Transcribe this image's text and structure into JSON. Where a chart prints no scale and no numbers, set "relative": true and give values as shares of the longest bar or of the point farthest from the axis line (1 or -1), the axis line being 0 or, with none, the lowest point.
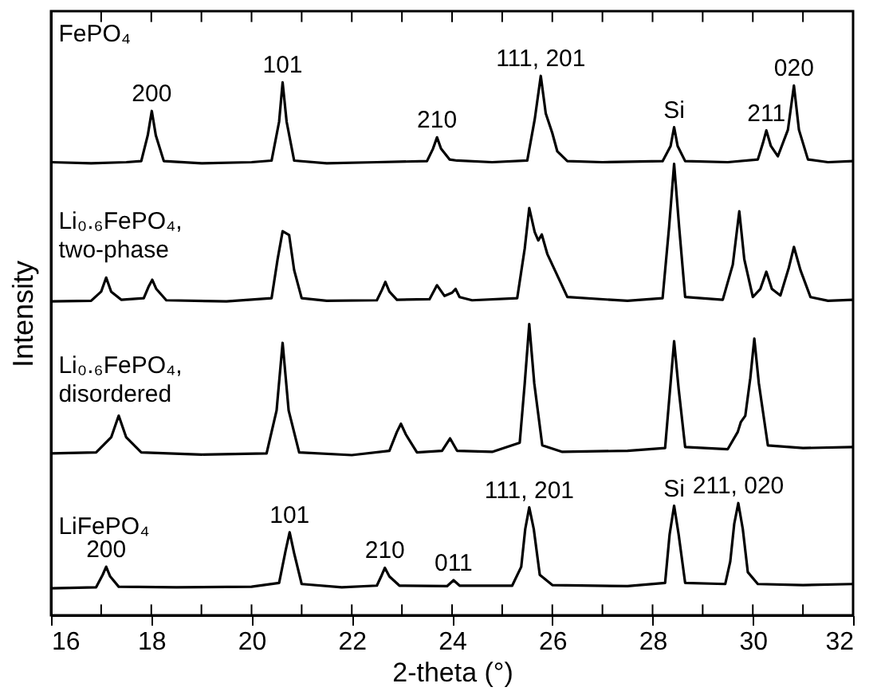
{
  "chart_data": {
    "type": "line",
    "relative": true,
    "xlabel": "2-theta (°)",
    "ylabel": "Intensity",
    "xlim": [
      16,
      32
    ],
    "xticks": [
      16,
      {
        "value": 17,
        "label": null
      },
      18,
      {
        "value": 19,
        "label": null
      },
      20,
      {
        "value": 21,
        "label": null
      },
      22,
      {
        "value": 23,
        "label": null
      },
      24,
      {
        "value": 25,
        "label": null
      },
      26,
      {
        "value": 27,
        "label": null
      },
      28,
      {
        "value": 29,
        "label": null
      },
      30,
      {
        "value": 31,
        "label": null
      },
      32
    ],
    "tick_labels": "x",
    "grid": false,
    "marker": "none",
    "line_style": "solid",
    "series": [
      {
        "name": "FePO₄",
        "color": "#000000",
        "x": [
          16.0,
          16.8,
          17.5,
          17.8,
          17.93,
          18.01,
          18.09,
          18.25,
          19.0,
          20.0,
          20.4,
          20.55,
          20.62,
          20.7,
          20.85,
          21.5,
          22.5,
          23.5,
          23.62,
          23.7,
          23.78,
          23.95,
          24.1,
          24.8,
          25.5,
          25.65,
          25.77,
          25.87,
          26.0,
          26.1,
          26.3,
          27.0,
          28.2,
          28.36,
          28.43,
          28.5,
          28.65,
          29.5,
          30.1,
          30.2,
          30.27,
          30.36,
          30.5,
          30.7,
          30.82,
          30.92,
          31.1,
          31.5,
          32.0
        ],
        "values": [
          0.84,
          0.838,
          0.84,
          0.842,
          0.89,
          0.935,
          0.89,
          0.842,
          0.838,
          0.84,
          0.843,
          0.915,
          0.988,
          0.915,
          0.843,
          0.838,
          0.84,
          0.842,
          0.865,
          0.886,
          0.865,
          0.845,
          0.843,
          0.84,
          0.843,
          0.92,
          1.0,
          0.93,
          0.894,
          0.86,
          0.842,
          0.84,
          0.842,
          0.87,
          0.905,
          0.87,
          0.842,
          0.84,
          0.845,
          0.875,
          0.899,
          0.87,
          0.851,
          0.9,
          0.982,
          0.9,
          0.845,
          0.84,
          0.842
        ]
      },
      {
        "name": "Li₀.₆FePO₄, two-phase",
        "color": "#000000",
        "x": [
          16.0,
          16.8,
          17.0,
          17.1,
          17.2,
          17.4,
          17.85,
          17.95,
          18.02,
          18.1,
          18.3,
          19.5,
          20.4,
          20.52,
          20.62,
          20.75,
          20.85,
          21.0,
          21.5,
          22.5,
          22.6,
          22.67,
          22.75,
          22.9,
          23.55,
          23.7,
          23.85,
          24.0,
          24.07,
          24.15,
          24.4,
          25.3,
          25.45,
          25.54,
          25.65,
          25.72,
          25.79,
          25.9,
          26.05,
          26.15,
          26.3,
          27.5,
          28.2,
          28.33,
          28.43,
          28.53,
          28.65,
          29.4,
          29.6,
          29.73,
          29.83,
          30.0,
          30.15,
          30.27,
          30.38,
          30.55,
          30.72,
          30.82,
          30.95,
          31.15,
          31.5,
          32.0
        ],
        "values": [
          0.582,
          0.583,
          0.6,
          0.626,
          0.6,
          0.585,
          0.588,
          0.61,
          0.622,
          0.605,
          0.584,
          0.582,
          0.588,
          0.66,
          0.712,
          0.705,
          0.64,
          0.588,
          0.583,
          0.584,
          0.603,
          0.618,
          0.6,
          0.585,
          0.586,
          0.612,
          0.592,
          0.598,
          0.605,
          0.59,
          0.584,
          0.588,
          0.68,
          0.755,
          0.71,
          0.695,
          0.706,
          0.67,
          0.64,
          0.62,
          0.59,
          0.583,
          0.588,
          0.72,
          0.837,
          0.72,
          0.59,
          0.585,
          0.65,
          0.749,
          0.66,
          0.59,
          0.605,
          0.637,
          0.605,
          0.593,
          0.645,
          0.683,
          0.64,
          0.59,
          0.583,
          0.585
        ]
      },
      {
        "name": "Li₀.₆FePO₄, disordered",
        "color": "#000000",
        "x": [
          16.0,
          16.9,
          17.2,
          17.35,
          17.5,
          17.8,
          19.0,
          20.3,
          20.5,
          20.62,
          20.74,
          20.95,
          22.0,
          22.75,
          22.9,
          22.98,
          23.08,
          23.3,
          23.8,
          23.96,
          24.1,
          24.8,
          25.35,
          25.45,
          25.54,
          25.64,
          25.8,
          26.2,
          27.5,
          28.25,
          28.35,
          28.43,
          28.52,
          28.65,
          29.5,
          29.7,
          29.76,
          29.85,
          29.95,
          30.03,
          30.12,
          30.3,
          31.0,
          32.0
        ],
        "values": [
          0.3,
          0.302,
          0.33,
          0.37,
          0.33,
          0.302,
          0.298,
          0.3,
          0.38,
          0.505,
          0.38,
          0.302,
          0.297,
          0.305,
          0.34,
          0.355,
          0.335,
          0.302,
          0.305,
          0.328,
          0.305,
          0.303,
          0.32,
          0.43,
          0.54,
          0.43,
          0.315,
          0.303,
          0.305,
          0.31,
          0.42,
          0.508,
          0.42,
          0.312,
          0.308,
          0.34,
          0.358,
          0.37,
          0.44,
          0.513,
          0.43,
          0.315,
          0.31,
          0.312
        ]
      },
      {
        "name": "LiFePO₄",
        "color": "#000000",
        "x": [
          16.0,
          16.9,
          17.03,
          17.1,
          17.18,
          17.35,
          18.5,
          20.0,
          20.55,
          20.68,
          20.76,
          20.85,
          21.0,
          21.8,
          22.5,
          22.6,
          22.66,
          22.75,
          22.95,
          23.9,
          24.03,
          24.15,
          25.2,
          25.38,
          25.46,
          25.54,
          25.63,
          25.75,
          26.0,
          27.5,
          28.25,
          28.34,
          28.43,
          28.52,
          28.65,
          29.45,
          29.55,
          29.63,
          29.71,
          29.8,
          29.9,
          30.1,
          31.0,
          32.0
        ],
        "values": [
          0.05,
          0.052,
          0.075,
          0.09,
          0.072,
          0.053,
          0.052,
          0.053,
          0.06,
          0.12,
          0.154,
          0.115,
          0.058,
          0.052,
          0.055,
          0.075,
          0.088,
          0.072,
          0.055,
          0.054,
          0.065,
          0.055,
          0.055,
          0.09,
          0.16,
          0.2,
          0.16,
          0.075,
          0.056,
          0.054,
          0.06,
          0.15,
          0.203,
          0.15,
          0.06,
          0.058,
          0.1,
          0.17,
          0.208,
          0.16,
          0.08,
          0.058,
          0.056,
          0.058
        ]
      }
    ],
    "annotations": [
      {
        "text": "101",
        "x": 20.62,
        "y": 0.988
      },
      {
        "text": "200",
        "x": 18.01,
        "y": 0.935
      },
      {
        "text": "210",
        "x": 23.7,
        "y": 0.886
      },
      {
        "text": "111, 201",
        "x": 25.77,
        "y": 1.0
      },
      {
        "text": "Si",
        "x": 28.43,
        "y": 0.905
      },
      {
        "text": "211",
        "x": 30.27,
        "y": 0.899
      },
      {
        "text": "020",
        "x": 30.82,
        "y": 0.982
      },
      {
        "text": "200",
        "x": 17.1,
        "y": 0.09
      },
      {
        "text": "101",
        "x": 20.76,
        "y": 0.154
      },
      {
        "text": "210",
        "x": 22.66,
        "y": 0.088
      },
      {
        "text": "011",
        "x": 24.03,
        "y": 0.065
      },
      {
        "text": "111, 201",
        "x": 25.54,
        "y": 0.2
      },
      {
        "text": "Si",
        "x": 28.43,
        "y": 0.203
      },
      {
        "text": "211, 020",
        "x": 29.71,
        "y": 0.208
      }
    ]
  }
}
